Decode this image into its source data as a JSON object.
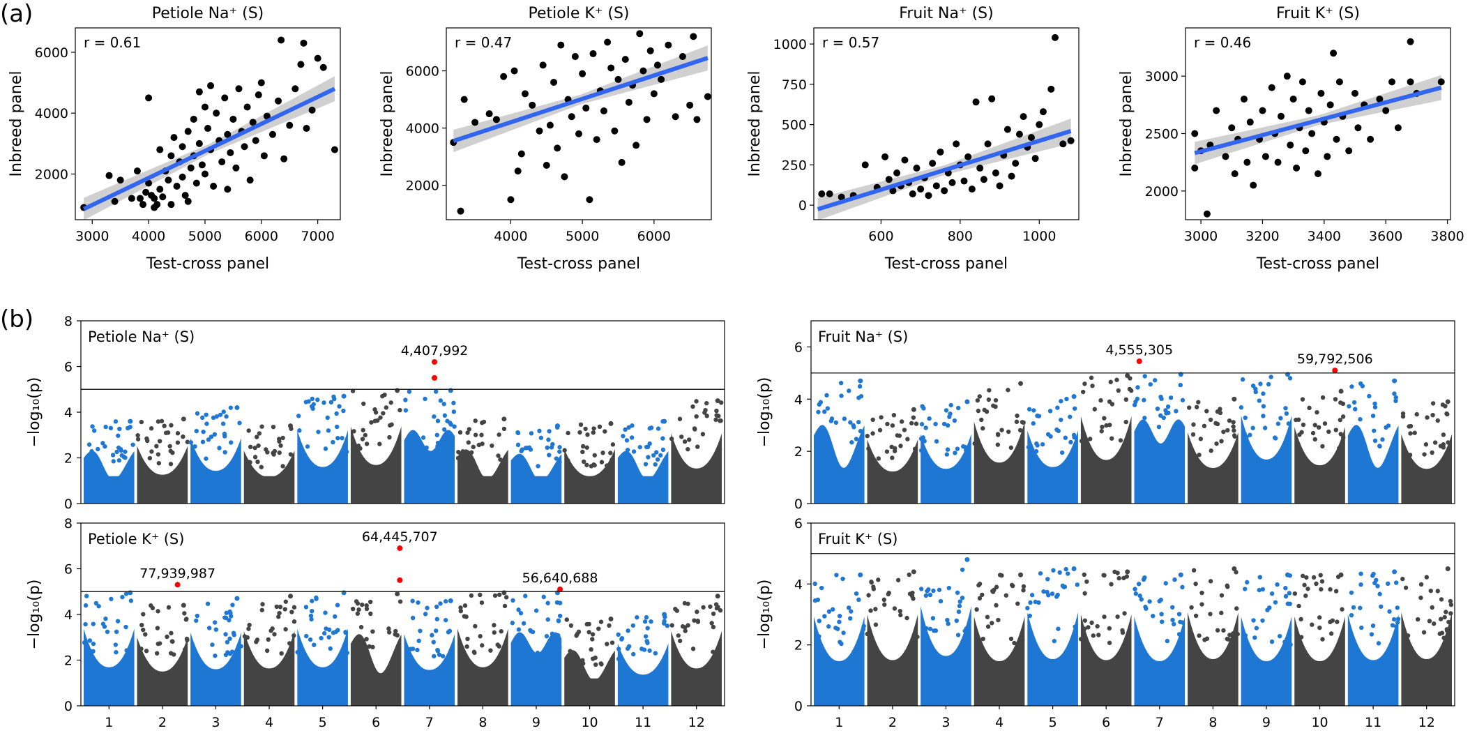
{
  "panel_labels": {
    "a": "(a)",
    "b": "(b)"
  },
  "chart_data": [
    {
      "type": "scatter",
      "title": "Petiole Na⁺ (S)",
      "xlabel": "Test-cross panel",
      "ylabel": "Inbreed panel",
      "annotation": "r = 0.61",
      "xlim": [
        2700,
        7400
      ],
      "ylim": [
        500,
        6800
      ],
      "xticks": [
        3000,
        4000,
        5000,
        6000,
        7000
      ],
      "yticks": [
        2000,
        4000,
        6000
      ],
      "fit_line": {
        "x": [
          2850,
          7300
        ],
        "y": [
          850,
          4800
        ]
      },
      "points": [
        [
          2850,
          900
        ],
        [
          3300,
          1950
        ],
        [
          3400,
          1100
        ],
        [
          3500,
          1800
        ],
        [
          3700,
          1200
        ],
        [
          3800,
          2100
        ],
        [
          3850,
          1200
        ],
        [
          3900,
          1000
        ],
        [
          3950,
          1400
        ],
        [
          4000,
          4500
        ],
        [
          4000,
          1700
        ],
        [
          4050,
          1300
        ],
        [
          4100,
          900
        ],
        [
          4100,
          1200
        ],
        [
          4150,
          1000
        ],
        [
          4200,
          2800
        ],
        [
          4200,
          1500
        ],
        [
          4250,
          1250
        ],
        [
          4300,
          2100
        ],
        [
          4350,
          1800
        ],
        [
          4400,
          2600
        ],
        [
          4400,
          1000
        ],
        [
          4450,
          3200
        ],
        [
          4500,
          1600
        ],
        [
          4550,
          2400
        ],
        [
          4600,
          2900
        ],
        [
          4600,
          1900
        ],
        [
          4650,
          1300
        ],
        [
          4700,
          3400
        ],
        [
          4700,
          1100
        ],
        [
          4750,
          2200
        ],
        [
          4800,
          3800
        ],
        [
          4800,
          2600
        ],
        [
          4850,
          1700
        ],
        [
          4900,
          4700
        ],
        [
          4900,
          3000
        ],
        [
          4950,
          2300
        ],
        [
          5000,
          4200
        ],
        [
          5000,
          2000
        ],
        [
          5050,
          3500
        ],
        [
          5100,
          4900
        ],
        [
          5100,
          2800
        ],
        [
          5150,
          1600
        ],
        [
          5200,
          4000
        ],
        [
          5250,
          3100
        ],
        [
          5300,
          2400
        ],
        [
          5350,
          4500
        ],
        [
          5400,
          3300
        ],
        [
          5400,
          1500
        ],
        [
          5450,
          2700
        ],
        [
          5500,
          3800
        ],
        [
          5550,
          2200
        ],
        [
          5600,
          4800
        ],
        [
          5650,
          3400
        ],
        [
          5700,
          2900
        ],
        [
          5750,
          4200
        ],
        [
          5800,
          1800
        ],
        [
          5850,
          3700
        ],
        [
          5900,
          3100
        ],
        [
          5950,
          4600
        ],
        [
          6000,
          5000
        ],
        [
          6050,
          2600
        ],
        [
          6100,
          3900
        ],
        [
          6200,
          3300
        ],
        [
          6300,
          4400
        ],
        [
          6350,
          6400
        ],
        [
          6400,
          2500
        ],
        [
          6500,
          3600
        ],
        [
          6600,
          4800
        ],
        [
          6700,
          5600
        ],
        [
          6750,
          6300
        ],
        [
          6800,
          3500
        ],
        [
          6900,
          4100
        ],
        [
          7000,
          5800
        ],
        [
          7100,
          5500
        ],
        [
          7300,
          2800
        ]
      ]
    },
    {
      "type": "scatter",
      "title": "Petiole K⁺ (S)",
      "xlabel": "Test-cross panel",
      "ylabel": "Inbreed panel",
      "annotation": "r = 0.47",
      "xlim": [
        3100,
        6800
      ],
      "ylim": [
        800,
        7500
      ],
      "xticks": [
        4000,
        5000,
        6000
      ],
      "yticks": [
        2000,
        4000,
        6000
      ],
      "fit_line": {
        "x": [
          3200,
          6750
        ],
        "y": [
          3550,
          6450
        ]
      },
      "points": [
        [
          3200,
          3500
        ],
        [
          3300,
          1100
        ],
        [
          3350,
          5000
        ],
        [
          3500,
          4200
        ],
        [
          3700,
          4500
        ],
        [
          3800,
          4300
        ],
        [
          3900,
          5800
        ],
        [
          4000,
          1500
        ],
        [
          4050,
          6000
        ],
        [
          4100,
          2500
        ],
        [
          4150,
          3100
        ],
        [
          4200,
          5200
        ],
        [
          4300,
          4800
        ],
        [
          4400,
          3900
        ],
        [
          4450,
          6200
        ],
        [
          4500,
          2700
        ],
        [
          4550,
          4100
        ],
        [
          4600,
          5600
        ],
        [
          4650,
          3300
        ],
        [
          4700,
          6900
        ],
        [
          4750,
          2300
        ],
        [
          4800,
          5000
        ],
        [
          4850,
          4400
        ],
        [
          4900,
          6500
        ],
        [
          4950,
          3800
        ],
        [
          5000,
          5900
        ],
        [
          5050,
          4700
        ],
        [
          5100,
          1500
        ],
        [
          5150,
          6600
        ],
        [
          5200,
          3600
        ],
        [
          5250,
          5300
        ],
        [
          5300,
          4600
        ],
        [
          5350,
          7000
        ],
        [
          5400,
          6100
        ],
        [
          5450,
          3900
        ],
        [
          5500,
          5700
        ],
        [
          5550,
          2800
        ],
        [
          5600,
          6400
        ],
        [
          5650,
          4900
        ],
        [
          5700,
          5500
        ],
        [
          5750,
          3400
        ],
        [
          5800,
          7300
        ],
        [
          5850,
          6000
        ],
        [
          5900,
          4300
        ],
        [
          5950,
          6700
        ],
        [
          6000,
          5200
        ],
        [
          6050,
          6200
        ],
        [
          6100,
          5700
        ],
        [
          6200,
          6900
        ],
        [
          6300,
          4400
        ],
        [
          6400,
          6500
        ],
        [
          6500,
          4800
        ],
        [
          6550,
          7200
        ],
        [
          6600,
          4300
        ],
        [
          6750,
          5100
        ]
      ]
    },
    {
      "type": "scatter",
      "title": "Fruit Na⁺ (S)",
      "xlabel": "Test-cross panel",
      "ylabel": "Inbreed panel",
      "annotation": "r = 0.57",
      "xlim": [
        430,
        1100
      ],
      "ylim": [
        -90,
        1100
      ],
      "xticks": [
        600,
        800,
        1000
      ],
      "yticks": [
        0,
        250,
        500,
        750,
        1000
      ],
      "fit_line": {
        "x": [
          440,
          1080
        ],
        "y": [
          -25,
          460
        ]
      },
      "points": [
        [
          450,
          70
        ],
        [
          470,
          70
        ],
        [
          500,
          50
        ],
        [
          530,
          60
        ],
        [
          560,
          250
        ],
        [
          590,
          110
        ],
        [
          610,
          300
        ],
        [
          620,
          160
        ],
        [
          630,
          90
        ],
        [
          640,
          200
        ],
        [
          650,
          120
        ],
        [
          660,
          280
        ],
        [
          670,
          140
        ],
        [
          680,
          70
        ],
        [
          690,
          230
        ],
        [
          700,
          100
        ],
        [
          710,
          170
        ],
        [
          720,
          60
        ],
        [
          730,
          260
        ],
        [
          740,
          120
        ],
        [
          750,
          330
        ],
        [
          760,
          90
        ],
        [
          770,
          200
        ],
        [
          780,
          140
        ],
        [
          790,
          380
        ],
        [
          800,
          250
        ],
        [
          810,
          150
        ],
        [
          820,
          300
        ],
        [
          830,
          100
        ],
        [
          840,
          640
        ],
        [
          850,
          230
        ],
        [
          860,
          160
        ],
        [
          870,
          380
        ],
        [
          880,
          660
        ],
        [
          890,
          200
        ],
        [
          900,
          120
        ],
        [
          910,
          310
        ],
        [
          920,
          470
        ],
        [
          930,
          180
        ],
        [
          940,
          260
        ],
        [
          950,
          440
        ],
        [
          960,
          550
        ],
        [
          970,
          360
        ],
        [
          980,
          420
        ],
        [
          990,
          290
        ],
        [
          1000,
          500
        ],
        [
          1010,
          580
        ],
        [
          1030,
          720
        ],
        [
          1040,
          1040
        ],
        [
          1060,
          380
        ],
        [
          1080,
          400
        ]
      ]
    },
    {
      "type": "scatter",
      "title": "Fruit K⁺ (S)",
      "xlabel": "Test-cross panel",
      "ylabel": "Inbreed panel",
      "annotation": "r = 0.46",
      "xlim": [
        2950,
        3810
      ],
      "ylim": [
        1750,
        3420
      ],
      "xticks": [
        3000,
        3200,
        3400,
        3600,
        3800
      ],
      "yticks": [
        2000,
        2500,
        3000
      ],
      "fit_line": {
        "x": [
          2980,
          3780
        ],
        "y": [
          2330,
          2900
        ]
      },
      "points": [
        [
          2980,
          2200
        ],
        [
          2980,
          2500
        ],
        [
          3000,
          2350
        ],
        [
          3020,
          1800
        ],
        [
          3030,
          2400
        ],
        [
          3050,
          2700
        ],
        [
          3080,
          2300
        ],
        [
          3100,
          2550
        ],
        [
          3110,
          2150
        ],
        [
          3120,
          2450
        ],
        [
          3140,
          2800
        ],
        [
          3150,
          2250
        ],
        [
          3160,
          2600
        ],
        [
          3170,
          2050
        ],
        [
          3190,
          2450
        ],
        [
          3200,
          2700
        ],
        [
          3210,
          2300
        ],
        [
          3230,
          2900
        ],
        [
          3240,
          2500
        ],
        [
          3250,
          2250
        ],
        [
          3260,
          2650
        ],
        [
          3280,
          3000
        ],
        [
          3290,
          2400
        ],
        [
          3300,
          2800
        ],
        [
          3310,
          2200
        ],
        [
          3320,
          2550
        ],
        [
          3330,
          2950
        ],
        [
          3340,
          2350
        ],
        [
          3350,
          2700
        ],
        [
          3360,
          2500
        ],
        [
          3380,
          2150
        ],
        [
          3390,
          2850
        ],
        [
          3400,
          2600
        ],
        [
          3410,
          2300
        ],
        [
          3420,
          2750
        ],
        [
          3430,
          3200
        ],
        [
          3440,
          2450
        ],
        [
          3450,
          2950
        ],
        [
          3460,
          2650
        ],
        [
          3480,
          2350
        ],
        [
          3500,
          2850
        ],
        [
          3510,
          2550
        ],
        [
          3530,
          2750
        ],
        [
          3550,
          2450
        ],
        [
          3580,
          2800
        ],
        [
          3600,
          2700
        ],
        [
          3620,
          2950
        ],
        [
          3640,
          2550
        ],
        [
          3680,
          3300
        ],
        [
          3680,
          2950
        ],
        [
          3700,
          2850
        ],
        [
          3780,
          2950
        ]
      ]
    },
    {
      "type": "scatter",
      "title": "Petiole Na⁺ (S)",
      "ylabel": "−log₁₀(p)",
      "ylim": [
        0,
        8
      ],
      "yticks": [
        0,
        2,
        4,
        6,
        8
      ],
      "threshold": 5,
      "annotations": [
        {
          "text": "4,407,992",
          "chr": 6,
          "pos": 0.6,
          "y": 6.2
        }
      ],
      "chr_max": [
        3.6,
        3.7,
        4.2,
        3.4,
        4.7,
        5.0,
        6.2,
        3.7,
        3.4,
        3.5,
        3.6,
        4.5
      ],
      "peak_style": [
        "m",
        "e",
        "e",
        "e",
        "e",
        "e",
        "s",
        "m",
        "m",
        "e",
        "m",
        "e"
      ]
    },
    {
      "type": "scatter",
      "title": "Fruit Na⁺ (S)",
      "ylabel": "−log₁₀(p)",
      "ylim": [
        0,
        7
      ],
      "yticks": [
        0,
        2,
        4,
        6
      ],
      "threshold": 5,
      "annotations": [
        {
          "text": "4,555,305",
          "chr": 6,
          "pos": 0.1,
          "y": 5.45
        },
        {
          "text": "59,792,506",
          "chr": 9,
          "pos": 0.8,
          "y": 5.1
        }
      ],
      "chr_max": [
        4.7,
        3.6,
        3.9,
        4.6,
        4.1,
        4.9,
        5.4,
        4.0,
        5.1,
        4.3,
        4.7,
        3.9
      ],
      "peak_style": [
        "m",
        "e",
        "e",
        "e",
        "e",
        "e",
        "s",
        "e",
        "e",
        "e",
        "m",
        "e"
      ]
    },
    {
      "type": "scatter",
      "title": "Petiole K⁺ (S)",
      "ylabel": "−log₁₀(p)",
      "ylim": [
        0,
        8
      ],
      "yticks": [
        0,
        2,
        4,
        6,
        8
      ],
      "threshold": 5,
      "annotations": [
        {
          "text": "77,939,987",
          "chr": 1,
          "pos": 0.8,
          "y": 5.3
        },
        {
          "text": "64,445,707",
          "chr": 5,
          "pos": 0.97,
          "y": 6.9
        },
        {
          "text": "56,640,688",
          "chr": 8,
          "pos": 0.97,
          "y": 5.1
        }
      ],
      "chr_max": [
        5.3,
        4.4,
        4.7,
        4.8,
        6.9,
        4.9,
        4.6,
        5.1,
        5.0,
        3.8,
        4.0,
        4.8
      ],
      "peak_style": [
        "e",
        "e",
        "e",
        "e",
        "e",
        "m",
        "e",
        "e",
        "s",
        "m",
        "e",
        "e"
      ]
    },
    {
      "type": "scatter",
      "title": "Fruit K⁺ (S)",
      "ylabel": "−log₁₀(p)",
      "ylim": [
        0,
        6
      ],
      "yticks": [
        0,
        2,
        4,
        6
      ],
      "threshold": 5,
      "annotations": [],
      "chr_max": [
        4.3,
        4.4,
        4.8,
        4.3,
        4.5,
        4.4,
        4.3,
        4.5,
        4.3,
        4.3,
        4.4,
        4.5
      ],
      "peak_style": [
        "e",
        "e",
        "e",
        "e",
        "e",
        "e",
        "e",
        "e",
        "e",
        "e",
        "e",
        "e"
      ]
    }
  ],
  "chromosomes": [
    "1",
    "2",
    "3",
    "4",
    "5",
    "6",
    "7",
    "8",
    "9",
    "10",
    "11",
    "12"
  ],
  "colors": {
    "blue": "#1f77d4",
    "gray": "#444444",
    "sig": "#ff0000",
    "fit": "#3366ee",
    "ci": "#c8c8c8"
  }
}
